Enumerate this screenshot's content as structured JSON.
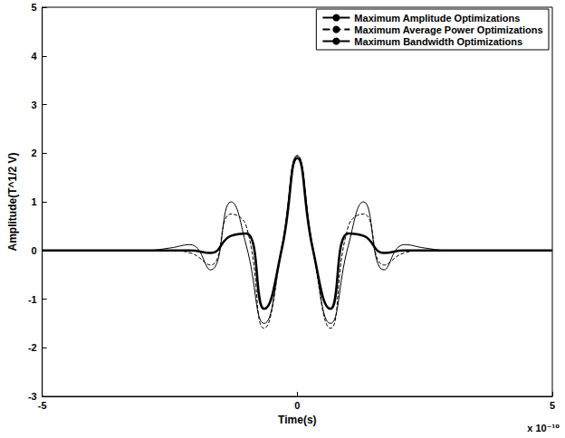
{
  "chart_data": {
    "type": "line",
    "x_label": "Time(s)",
    "y_label": "Amplitude(T^1/2 V)",
    "annotations": [
      "x 10⁻¹⁰"
    ],
    "x": [
      -5,
      -3,
      -2.5,
      -2.1,
      -1.7,
      -1.3,
      -1.0,
      -0.65,
      -0.3,
      0,
      0.3,
      0.65,
      1.0,
      1.3,
      1.7,
      2.1,
      2.5,
      3,
      5
    ],
    "series": [
      {
        "name": "Maximum Amplitude Optimizations",
        "color": "#000000",
        "line_style": "solid",
        "values": [
          0,
          0,
          0.05,
          0.12,
          -0.4,
          1.0,
          0.1,
          -1.5,
          0.1,
          1.95,
          0.1,
          -1.5,
          0.1,
          1.0,
          -0.4,
          0.12,
          0.05,
          0,
          0
        ]
      },
      {
        "name": "Maximum Average Power Optimizations",
        "color": "#000000",
        "line_style": "dashed",
        "values": [
          0,
          0,
          0,
          -0.05,
          -0.3,
          0.75,
          0.5,
          -1.6,
          0.05,
          1.95,
          0.05,
          -1.6,
          0.5,
          0.75,
          -0.3,
          -0.05,
          0,
          0,
          0
        ]
      },
      {
        "name": "Maximum Bandwidth Optimizations",
        "color": "#000000",
        "line_style": "thick",
        "values": [
          0,
          0,
          0,
          0,
          -0.05,
          0.3,
          0.35,
          -1.2,
          0.05,
          1.9,
          0.05,
          -1.2,
          0.35,
          0.3,
          -0.05,
          0,
          0,
          0,
          0
        ]
      }
    ],
    "xlim": [
      -5,
      5
    ],
    "xticks": [
      -5,
      0,
      5
    ],
    "ylim": [
      -3,
      5
    ],
    "yticks": [
      -3,
      -2,
      -1,
      0,
      1,
      2,
      3,
      4,
      5
    ],
    "legend": "top-right",
    "grid": false
  }
}
